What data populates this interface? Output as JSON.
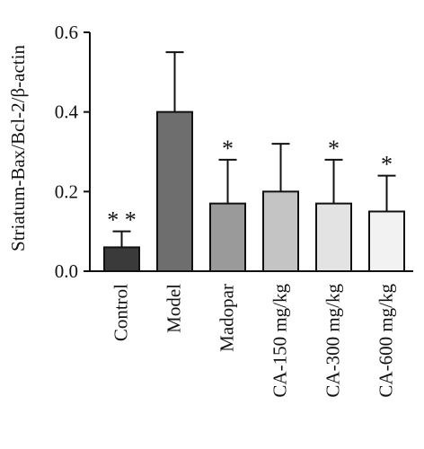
{
  "chart_data": {
    "type": "bar",
    "title": "",
    "xlabel": "",
    "ylabel": "Striatum-Bax/Bcl-2/β-actin",
    "ylim": [
      0,
      0.6
    ],
    "yticks": [
      "0.0",
      "0.2",
      "0.4",
      "0.6"
    ],
    "categories": [
      "Control",
      "Model",
      "Madopar",
      "CA-150 mg/kg",
      "CA-300 mg/kg",
      "CA-600 mg/kg"
    ],
    "values": [
      0.06,
      0.4,
      0.17,
      0.2,
      0.17,
      0.15
    ],
    "errors": [
      0.04,
      0.15,
      0.11,
      0.12,
      0.11,
      0.09
    ],
    "significance": [
      "**",
      "",
      "*",
      "",
      "*",
      "*"
    ],
    "bar_colors": [
      "#3a3a3a",
      "#6e6e6e",
      "#9a9a9a",
      "#c4c4c4",
      "#e3e3e3",
      "#f2f2f2"
    ],
    "grid": false
  }
}
